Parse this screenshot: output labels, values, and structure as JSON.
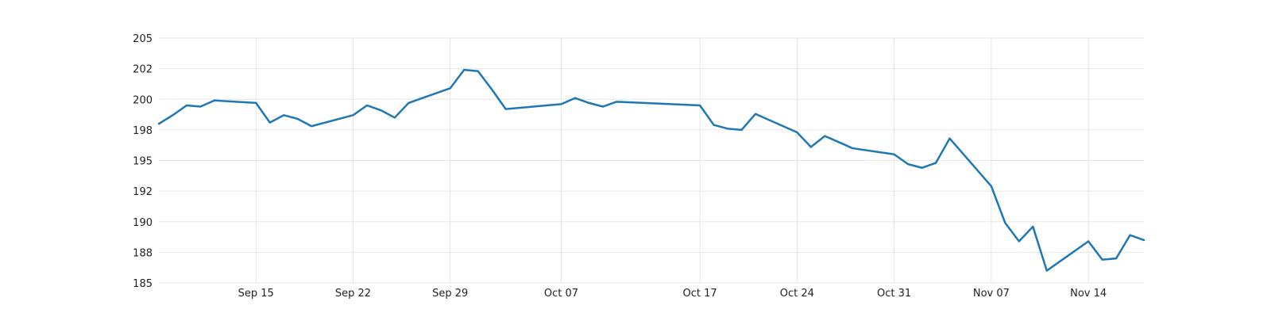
{
  "chart_data": {
    "type": "line",
    "title": "",
    "xlabel": "",
    "ylabel": "",
    "grid": true,
    "legend": "none",
    "ylim": [
      185,
      205
    ],
    "y_ticks": [
      {
        "value": 185,
        "label": "185"
      },
      {
        "value": 187.5,
        "label": "188"
      },
      {
        "value": 190,
        "label": "190"
      },
      {
        "value": 192.5,
        "label": "192"
      },
      {
        "value": 195,
        "label": "195"
      },
      {
        "value": 197.5,
        "label": "198"
      },
      {
        "value": 200,
        "label": "200"
      },
      {
        "value": 202.5,
        "label": "202"
      },
      {
        "value": 205,
        "label": "205"
      }
    ],
    "x_ticks": [
      {
        "value": "2023-09-15",
        "label": "Sep 15"
      },
      {
        "value": "2023-09-22",
        "label": "Sep 22"
      },
      {
        "value": "2023-09-29",
        "label": "Sep 29"
      },
      {
        "value": "2023-10-07",
        "label": "Oct 07"
      },
      {
        "value": "2023-10-17",
        "label": "Oct 17"
      },
      {
        "value": "2023-10-24",
        "label": "Oct 24"
      },
      {
        "value": "2023-10-31",
        "label": "Oct 31"
      },
      {
        "value": "2023-11-07",
        "label": "Nov 07"
      },
      {
        "value": "2023-11-14",
        "label": "Nov 14"
      }
    ],
    "series": [
      {
        "color": "#1f77b4",
        "x": [
          "2023-09-08",
          "2023-09-09",
          "2023-09-10",
          "2023-09-11",
          "2023-09-12",
          "2023-09-15",
          "2023-09-16",
          "2023-09-17",
          "2023-09-18",
          "2023-09-19",
          "2023-09-22",
          "2023-09-23",
          "2023-09-24",
          "2023-09-25",
          "2023-09-26",
          "2023-09-29",
          "2023-09-30",
          "2023-10-01",
          "2023-10-02",
          "2023-10-03",
          "2023-10-07",
          "2023-10-08",
          "2023-10-09",
          "2023-10-10",
          "2023-10-11",
          "2023-10-17",
          "2023-10-18",
          "2023-10-19",
          "2023-10-20",
          "2023-10-21",
          "2023-10-24",
          "2023-10-25",
          "2023-10-26",
          "2023-10-27",
          "2023-10-28",
          "2023-10-31",
          "2023-11-01",
          "2023-11-02",
          "2023-11-03",
          "2023-11-04",
          "2023-11-07",
          "2023-11-08",
          "2023-11-09",
          "2023-11-10",
          "2023-11-11",
          "2023-11-14",
          "2023-11-15",
          "2023-11-16",
          "2023-11-17",
          "2023-11-18"
        ],
        "values": [
          198.0,
          198.7,
          199.5,
          199.4,
          199.9,
          199.7,
          198.1,
          198.7,
          198.4,
          197.8,
          198.7,
          199.5,
          199.1,
          198.5,
          199.7,
          200.9,
          202.4,
          202.3,
          200.8,
          199.2,
          199.6,
          200.1,
          199.7,
          199.4,
          199.8,
          199.5,
          197.9,
          197.6,
          197.5,
          198.8,
          197.3,
          196.1,
          197.0,
          196.5,
          196.0,
          195.5,
          194.7,
          194.4,
          194.8,
          196.8,
          192.9,
          189.9,
          188.4,
          189.6,
          186.0,
          188.4,
          186.9,
          187.0,
          188.9,
          188.5
        ]
      }
    ]
  }
}
